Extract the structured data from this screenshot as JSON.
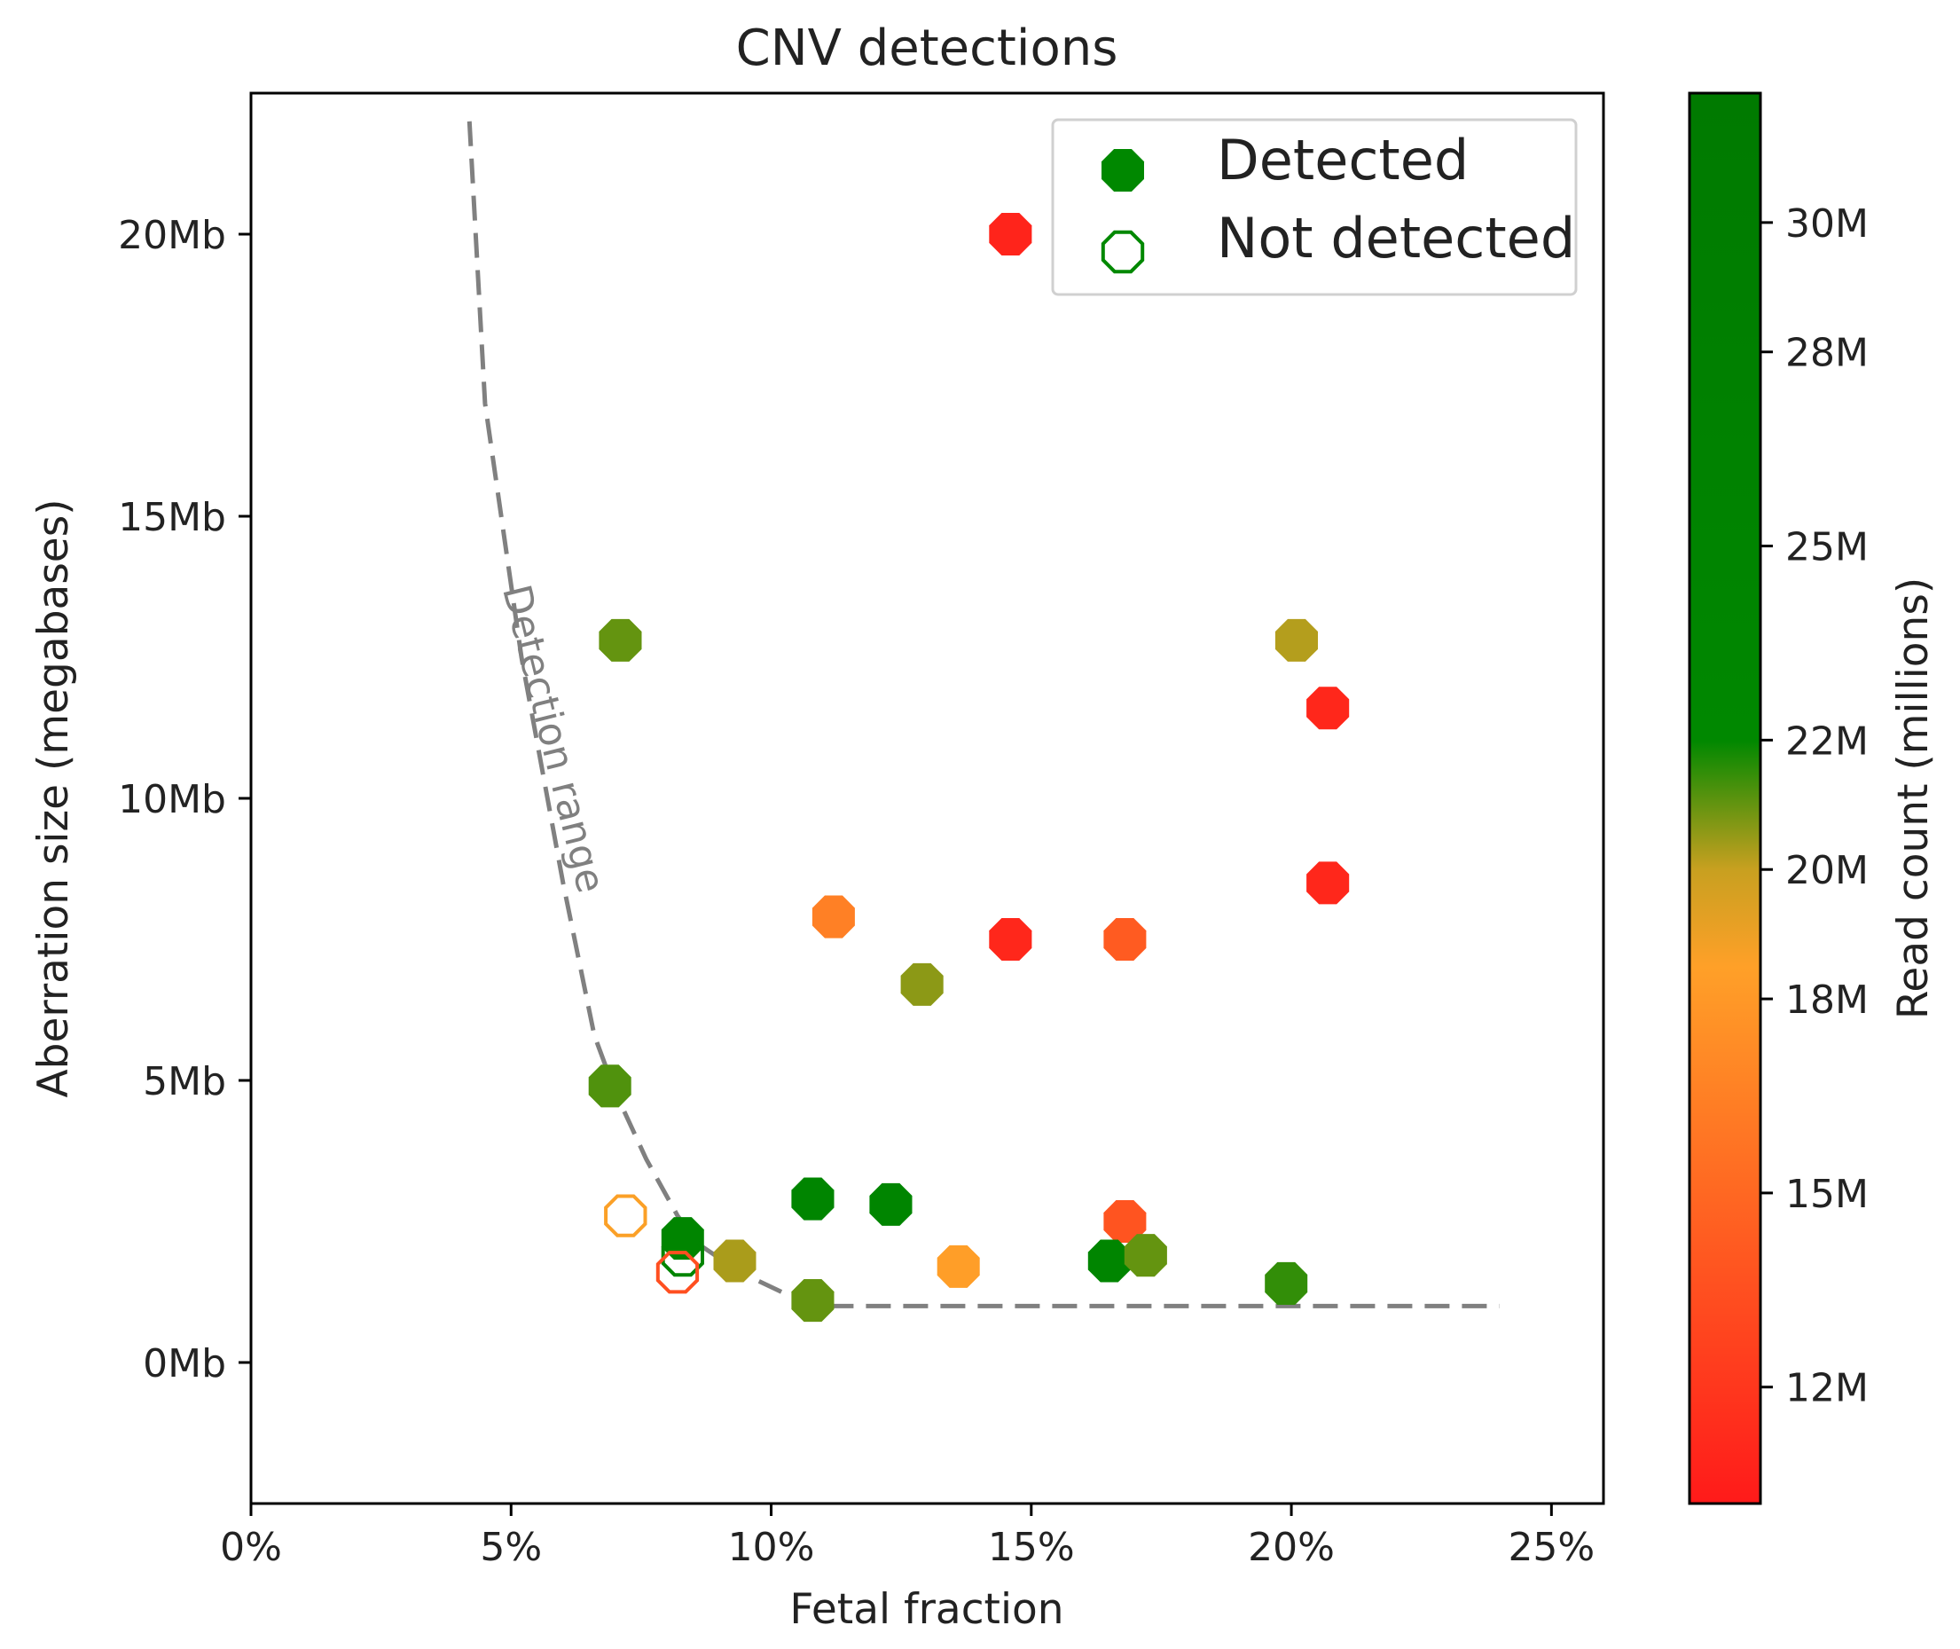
{
  "chart_data": {
    "type": "scatter",
    "title": "CNV detections",
    "xlabel": "Fetal fraction",
    "ylabel": "Aberration size (megabases)",
    "xlim": [
      0,
      26
    ],
    "ylim": [
      -2.5,
      22.5
    ],
    "x_ticks": [
      {
        "value": 0,
        "label": "0%"
      },
      {
        "value": 5,
        "label": "5%"
      },
      {
        "value": 10,
        "label": "10%"
      },
      {
        "value": 15,
        "label": "15%"
      },
      {
        "value": 20,
        "label": "20%"
      },
      {
        "value": 25,
        "label": "25%"
      }
    ],
    "y_ticks": [
      {
        "value": 0,
        "label": "0Mb"
      },
      {
        "value": 5,
        "label": "5Mb"
      },
      {
        "value": 10,
        "label": "10Mb"
      },
      {
        "value": 15,
        "label": "15Mb"
      },
      {
        "value": 20,
        "label": "20Mb"
      }
    ],
    "colorbar": {
      "label": "Read count (millions)",
      "range": [
        10.2,
        32.0
      ],
      "stops": [
        {
          "value": 10.2,
          "color": "#ff1a1a"
        },
        {
          "value": 18.5,
          "color": "#ffa028"
        },
        {
          "value": 20.0,
          "color": "#c8a020"
        },
        {
          "value": 22.0,
          "color": "#008800"
        },
        {
          "value": 32.0,
          "color": "#007a00"
        }
      ],
      "ticks": [
        {
          "value": 12,
          "label": "12M"
        },
        {
          "value": 15,
          "label": "15M"
        },
        {
          "value": 18,
          "label": "18M"
        },
        {
          "value": 20,
          "label": "20M"
        },
        {
          "value": 22,
          "label": "22M"
        },
        {
          "value": 25,
          "label": "25M"
        },
        {
          "value": 28,
          "label": "28M"
        },
        {
          "value": 30,
          "label": "30M"
        }
      ]
    },
    "legend": {
      "placement": "top-right",
      "entries": [
        {
          "label": "Detected",
          "style": "filled",
          "color": "#008800"
        },
        {
          "label": "Not detected",
          "style": "hollow",
          "color": "#008800"
        }
      ]
    },
    "detection_curve": {
      "label": "Detection range",
      "color": "#808080",
      "points": [
        [
          4.2,
          22
        ],
        [
          4.5,
          17
        ],
        [
          5.2,
          12.5
        ],
        [
          6.0,
          8.5
        ],
        [
          6.6,
          5.8
        ],
        [
          7.0,
          4.8
        ],
        [
          7.6,
          3.6
        ],
        [
          8.2,
          2.6
        ],
        [
          8.6,
          2.1
        ],
        [
          9.4,
          1.6
        ],
        [
          10.2,
          1.25
        ],
        [
          11.0,
          1.0
        ],
        [
          12.0,
          1.0
        ],
        [
          24.0,
          1.0
        ]
      ]
    },
    "points": [
      {
        "x": 14.6,
        "y": 20.0,
        "reads": 10.8,
        "detected": true
      },
      {
        "x": 7.1,
        "y": 12.8,
        "reads": 21.0,
        "detected": true
      },
      {
        "x": 20.1,
        "y": 12.8,
        "reads": 20.2,
        "detected": true
      },
      {
        "x": 20.7,
        "y": 11.6,
        "reads": 11.0,
        "detected": true
      },
      {
        "x": 20.7,
        "y": 8.5,
        "reads": 11.0,
        "detected": true
      },
      {
        "x": 11.2,
        "y": 7.9,
        "reads": 16.5,
        "detected": true
      },
      {
        "x": 14.6,
        "y": 7.5,
        "reads": 11.0,
        "detected": true
      },
      {
        "x": 16.8,
        "y": 7.5,
        "reads": 14.2,
        "detected": true
      },
      {
        "x": 12.9,
        "y": 6.7,
        "reads": 20.6,
        "detected": true
      },
      {
        "x": 6.9,
        "y": 4.9,
        "reads": 21.2,
        "detected": true
      },
      {
        "x": 10.8,
        "y": 2.9,
        "reads": 24.0,
        "detected": true
      },
      {
        "x": 12.3,
        "y": 2.8,
        "reads": 24.0,
        "detected": true
      },
      {
        "x": 16.8,
        "y": 2.5,
        "reads": 13.8,
        "detected": true
      },
      {
        "x": 8.3,
        "y": 2.2,
        "reads": 24.0,
        "detected": true
      },
      {
        "x": 9.3,
        "y": 1.8,
        "reads": 20.3,
        "detected": true
      },
      {
        "x": 13.6,
        "y": 1.7,
        "reads": 18.4,
        "detected": true
      },
      {
        "x": 16.5,
        "y": 1.8,
        "reads": 24.0,
        "detected": true
      },
      {
        "x": 17.2,
        "y": 1.9,
        "reads": 21.0,
        "detected": true
      },
      {
        "x": 19.9,
        "y": 1.4,
        "reads": 21.5,
        "detected": true
      },
      {
        "x": 10.8,
        "y": 1.1,
        "reads": 21.0,
        "detected": true
      },
      {
        "x": 7.2,
        "y": 2.6,
        "reads": 18.6,
        "detected": false
      },
      {
        "x": 8.3,
        "y": 1.9,
        "reads": 24.0,
        "detected": false
      },
      {
        "x": 8.2,
        "y": 1.6,
        "reads": 13.5,
        "detected": false
      }
    ]
  }
}
